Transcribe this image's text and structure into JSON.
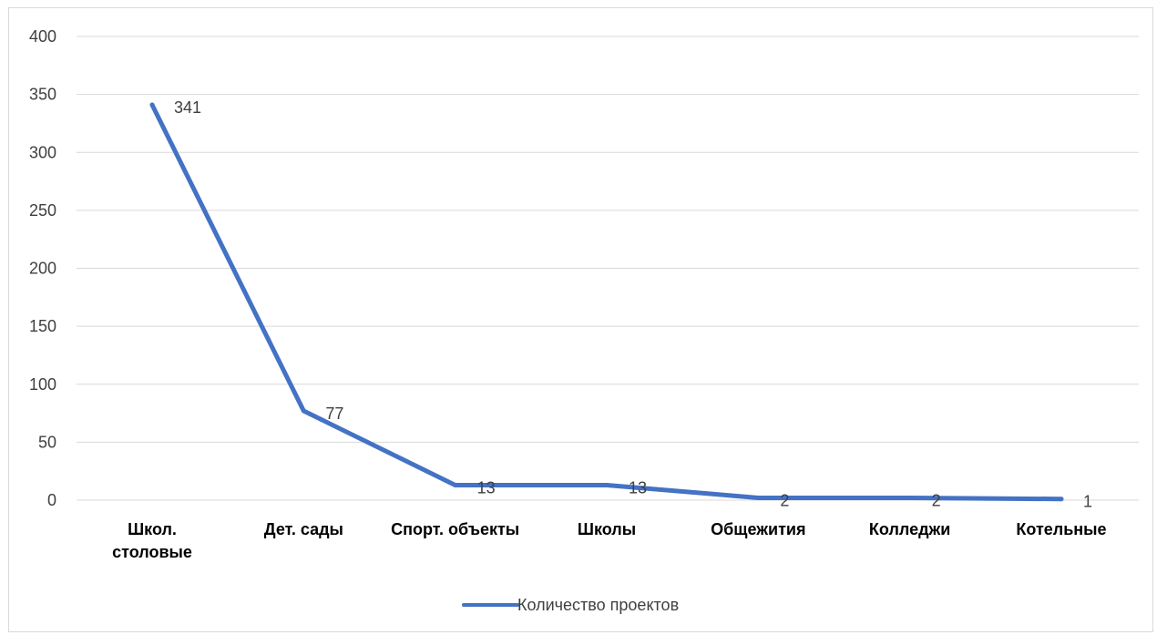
{
  "chart_data": {
    "type": "line",
    "categories": [
      [
        "Школ.",
        "столовые"
      ],
      [
        "Дет. сады"
      ],
      [
        "Спорт. объекты"
      ],
      [
        "Школы"
      ],
      [
        "Общежития"
      ],
      [
        "Колледжи"
      ],
      [
        "Котельные"
      ]
    ],
    "series": [
      {
        "name": "Количество проектов",
        "values": [
          341,
          77,
          13,
          13,
          2,
          2,
          1
        ],
        "color": "#4472c4"
      }
    ],
    "data_labels": [
      "341",
      "77",
      "13",
      "13",
      "2",
      "2",
      "1"
    ],
    "y_ticks": [
      "0",
      "50",
      "100",
      "150",
      "200",
      "250",
      "300",
      "350",
      "400"
    ],
    "ylim": [
      0,
      400
    ],
    "grid": true,
    "legend_position": "bottom",
    "gridline_color": "#d9d9d9"
  }
}
